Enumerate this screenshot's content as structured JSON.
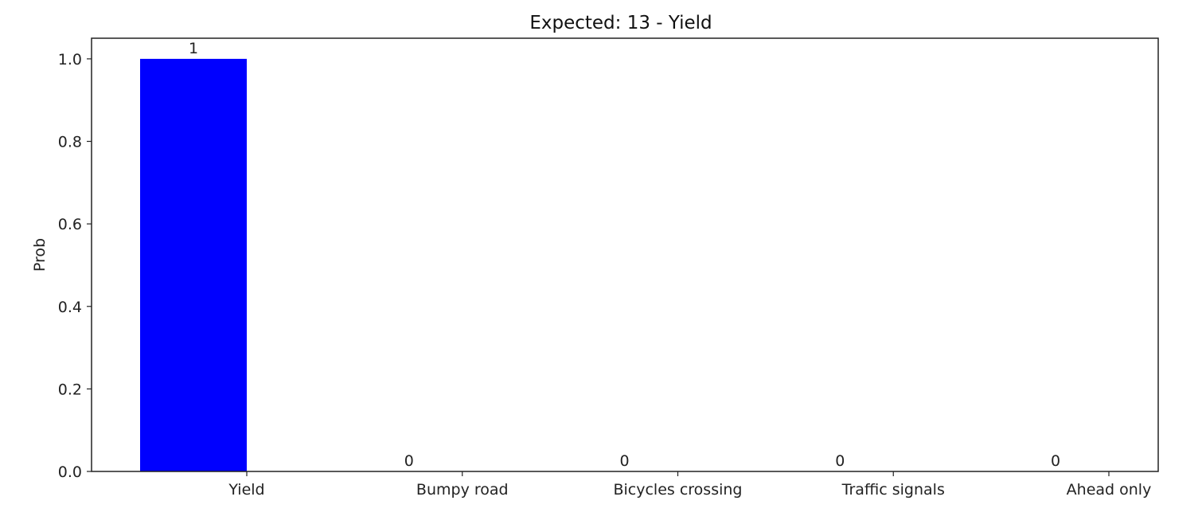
{
  "chart_data": {
    "type": "bar",
    "title": "Expected: 13 - Yield",
    "xlabel": "",
    "ylabel": "Prob",
    "categories": [
      "Yield",
      "Bumpy road",
      "Bicycles crossing",
      "Traffic signals",
      "Ahead only"
    ],
    "values": [
      1,
      0,
      0,
      0,
      0
    ],
    "value_labels": [
      "1",
      "0",
      "0",
      "0",
      "0"
    ],
    "ylim": [
      0,
      1.05
    ],
    "yticks": [
      0.0,
      0.2,
      0.4,
      0.6,
      0.8,
      1.0
    ],
    "ytick_labels": [
      "0.0",
      "0.2",
      "0.4",
      "0.6",
      "0.8",
      "1.0"
    ],
    "bar_color": "#0000ff",
    "grid": false,
    "legend": "none"
  }
}
